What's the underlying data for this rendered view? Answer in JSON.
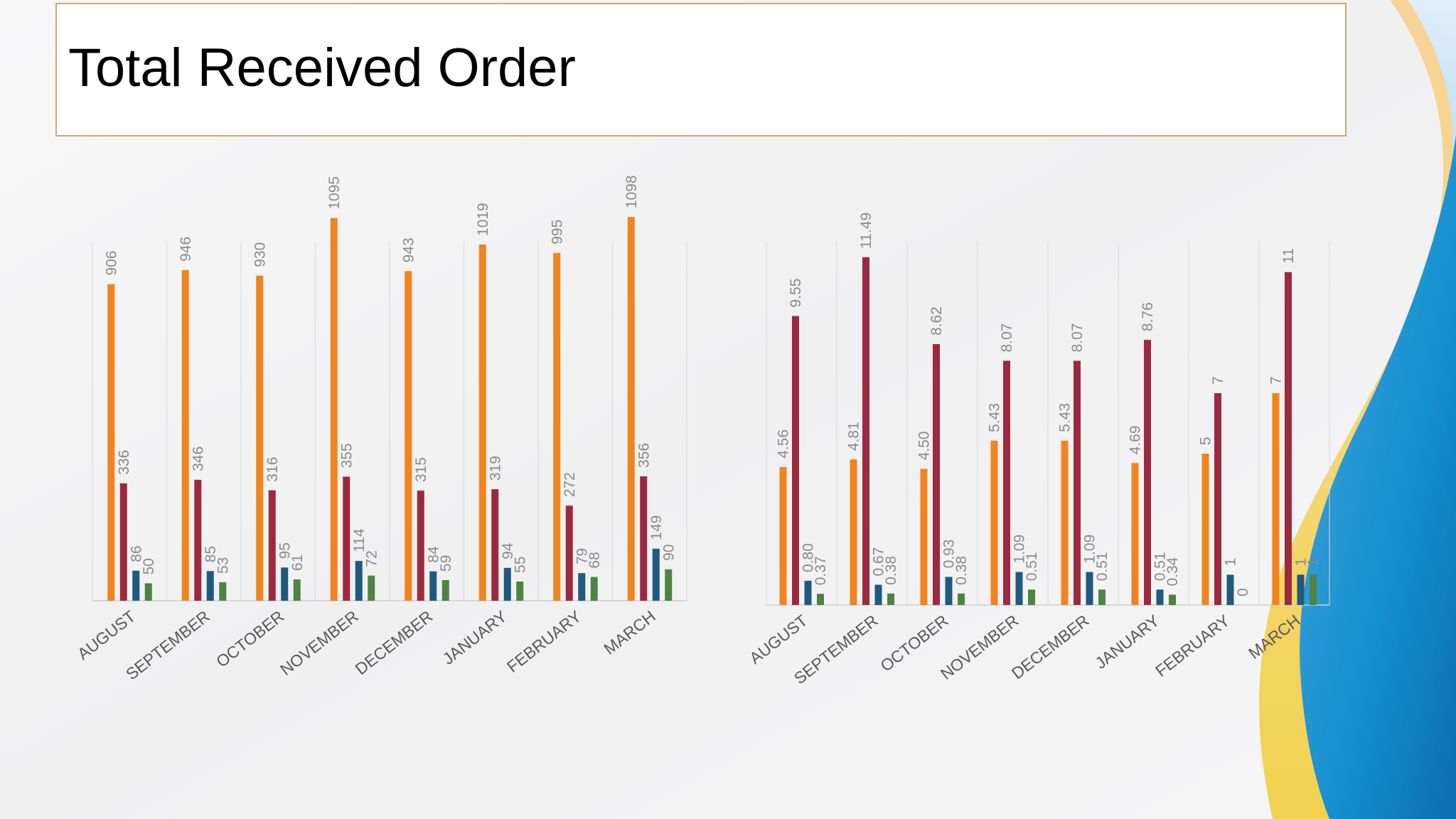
{
  "slide": {
    "title": "Total Received Order"
  },
  "colors": {
    "series": [
      "#f0841e",
      "#9b2a3f",
      "#1f5a7e",
      "#4d8442"
    ],
    "gridline": "#d9d9d9",
    "axis": "#cfcfcf",
    "label": "#8a8a8a",
    "category_label": "#595959",
    "title_border": "#c8a977"
  },
  "chart_data": [
    {
      "type": "bar",
      "categories": [
        "AUGUST",
        "SEPTEMBER",
        "OCTOBER",
        "NOVEMBER",
        "DECEMBER",
        "JANUARY",
        "FEBRUARY",
        "MARCH"
      ],
      "series": [
        {
          "values": [
            906,
            946,
            930,
            1095,
            943,
            1019,
            995,
            1098
          ],
          "labels": [
            "906",
            "946",
            "930",
            "1095",
            "943",
            "1019",
            "995",
            "1098"
          ]
        },
        {
          "values": [
            336,
            346,
            316,
            355,
            315,
            319,
            272,
            356
          ],
          "labels": [
            "336",
            "346",
            "316",
            "355",
            "315",
            "319",
            "272",
            "356"
          ]
        },
        {
          "values": [
            86,
            85,
            95,
            114,
            84,
            94,
            79,
            149
          ],
          "labels": [
            "86",
            "85",
            "95",
            "114",
            "84",
            "94",
            "79",
            "149"
          ]
        },
        {
          "values": [
            50,
            53,
            61,
            72,
            59,
            55,
            68,
            90
          ],
          "labels": [
            "50",
            "53",
            "61",
            "72",
            "59",
            "55",
            "68",
            "90"
          ]
        }
      ],
      "ylim": [
        0,
        1200
      ],
      "grid": "vertical separators",
      "legend": "none"
    },
    {
      "type": "bar",
      "categories": [
        "AUGUST",
        "SEPTEMBER",
        "OCTOBER",
        "NOVEMBER",
        "DECEMBER",
        "JANUARY",
        "FEBRUARY",
        "MARCH"
      ],
      "series": [
        {
          "values": [
            4.56,
            4.81,
            4.5,
            5.43,
            5.43,
            4.69,
            5,
            7
          ],
          "labels": [
            "4.56",
            "4.81",
            "4.50",
            "5.43",
            "5.43",
            "4.69",
            "5",
            "7"
          ]
        },
        {
          "values": [
            9.55,
            11.49,
            8.62,
            8.07,
            8.07,
            8.76,
            7,
            11
          ],
          "labels": [
            "9.55",
            "11.49",
            "8.62",
            "8.07",
            "8.07",
            "8.76",
            "7",
            "11"
          ]
        },
        {
          "values": [
            0.8,
            0.67,
            0.93,
            1.09,
            1.09,
            0.51,
            1,
            1
          ],
          "labels": [
            "0.80",
            "0.67",
            "0.93",
            "1.09",
            "1.09",
            "0.51",
            "1",
            "1"
          ]
        },
        {
          "values": [
            0.37,
            0.38,
            0.38,
            0.51,
            0.51,
            0.34,
            0,
            1
          ],
          "labels": [
            "0.37",
            "0.38",
            "0.38",
            "0.51",
            "0.51",
            "0.34",
            "0",
            "1"
          ]
        }
      ],
      "ylim": [
        0,
        14
      ],
      "grid": "vertical separators",
      "legend": "none"
    }
  ]
}
